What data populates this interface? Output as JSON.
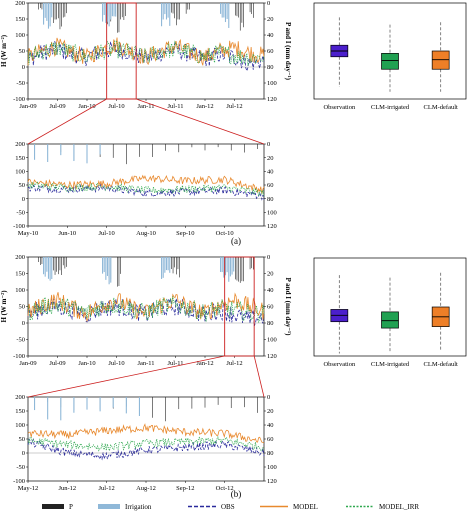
{
  "figure": {
    "panel_labels": [
      "(a)",
      "(b)"
    ],
    "colors": {
      "obs": "#2a2a9c",
      "model": "#e8892e",
      "model_irr": "#2fa84f",
      "precip": "#222222",
      "irrigation": "#8fb8d8",
      "box_obs": "#4b1fcc",
      "box_irr": "#21a152",
      "box_def": "#ee7f27",
      "zoom": "#cc1f1f"
    }
  },
  "legend": {
    "items": [
      {
        "key": "P",
        "label": "P",
        "symbol": "bar",
        "color": "#222222"
      },
      {
        "key": "irrigation",
        "label": "Irrigation",
        "symbol": "bar",
        "color": "#8fb8d8"
      },
      {
        "key": "obs",
        "label": "OBS",
        "symbol": "dash",
        "color": "#2a2a9c"
      },
      {
        "key": "model",
        "label": "MODEL",
        "symbol": "line",
        "color": "#e8892e"
      },
      {
        "key": "model_irr",
        "label": "MODEL_IRR",
        "symbol": "dot",
        "color": "#2fa84f"
      }
    ]
  },
  "chart_data": [
    {
      "id": "a_main",
      "type": "line",
      "panel": "(a)",
      "ylabel": "H (W m⁻²)",
      "y2label": "P and I (mm day⁻¹)",
      "ylim": [
        -100,
        200
      ],
      "yticks": [
        -100,
        -50,
        0,
        50,
        100,
        150,
        200
      ],
      "y2ticks": [
        0,
        20,
        40,
        60,
        80,
        100,
        120
      ],
      "x_tick_labels": [
        "Jan-09",
        "Jul-09",
        "Jan-10",
        "Jul-10",
        "Jan-11",
        "Jul-11",
        "Jan-12",
        "Jul-12"
      ],
      "x_start": "Jan-09",
      "x_end": "Jan-13",
      "zoom_range": [
        "May-10",
        "Nov-10"
      ],
      "series": [
        {
          "name": "OBS",
          "color": "#2a2a9c",
          "style": "dash",
          "x": [
            "Jan-09",
            "Apr-09",
            "Jul-09",
            "Oct-09",
            "Jan-10",
            "Apr-10",
            "Jul-10",
            "Oct-10",
            "Jan-11",
            "Apr-11",
            "Jul-11",
            "Oct-11",
            "Jan-12",
            "Apr-12",
            "Jul-12",
            "Oct-12",
            "Jan-13"
          ],
          "values": [
            25,
            45,
            55,
            40,
            30,
            50,
            55,
            45,
            25,
            45,
            55,
            40,
            25,
            40,
            30,
            10,
            20
          ]
        },
        {
          "name": "MODEL",
          "color": "#e8892e",
          "style": "solid",
          "x": [
            "Jan-09",
            "Apr-09",
            "Jul-09",
            "Oct-09",
            "Jan-10",
            "Apr-10",
            "Jul-10",
            "Oct-10",
            "Jan-11",
            "Apr-11",
            "Jul-11",
            "Oct-11",
            "Jan-12",
            "Apr-12",
            "Jul-12",
            "Oct-12",
            "Jan-13"
          ],
          "values": [
            30,
            50,
            65,
            45,
            30,
            55,
            70,
            50,
            30,
            50,
            65,
            45,
            30,
            50,
            60,
            45,
            35
          ]
        },
        {
          "name": "MODEL_IRR",
          "color": "#2fa84f",
          "style": "dot",
          "x": [
            "Jan-09",
            "Apr-09",
            "Jul-09",
            "Oct-09",
            "Jan-10",
            "Apr-10",
            "Jul-10",
            "Oct-10",
            "Jan-11",
            "Apr-11",
            "Jul-11",
            "Oct-11",
            "Jan-12",
            "Apr-12",
            "Jul-12",
            "Oct-12",
            "Jan-13"
          ],
          "values": [
            30,
            50,
            60,
            45,
            30,
            50,
            55,
            45,
            30,
            50,
            55,
            45,
            30,
            45,
            35,
            30,
            30
          ]
        }
      ],
      "bars": [
        {
          "name": "P",
          "color": "#222222",
          "x": [
            "Mar-09",
            "Jun-09",
            "Jul-09",
            "Aug-09",
            "May-10",
            "Jun-10",
            "Jul-10",
            "Aug-10",
            "Jun-11",
            "Jul-11",
            "Sep-11",
            "Jul-12",
            "Aug-12",
            "Oct-12"
          ],
          "values": [
            10,
            25,
            35,
            20,
            30,
            15,
            40,
            25,
            20,
            30,
            15,
            25,
            35,
            20
          ]
        },
        {
          "name": "Irrigation",
          "color": "#8fb8d8",
          "x": [
            "Apr-09",
            "May-09",
            "Apr-10",
            "May-10",
            "Jun-10",
            "Apr-11",
            "May-11",
            "Apr-12",
            "May-12"
          ],
          "values": [
            30,
            35,
            30,
            35,
            25,
            30,
            35,
            30,
            35
          ]
        }
      ]
    },
    {
      "id": "a_zoom",
      "type": "line",
      "panel": "(a)",
      "ylim": [
        -100,
        200
      ],
      "yticks": [
        -100,
        -50,
        0,
        50,
        100,
        150,
        200
      ],
      "y2ticks": [
        0,
        20,
        40,
        60,
        80,
        100,
        120
      ],
      "x_tick_labels": [
        "May-10",
        "Jun-10",
        "Jul-10",
        "Aug-10",
        "Sep-10",
        "Oct-10"
      ],
      "x_start": "May-10",
      "x_end": "Nov-10",
      "series": [
        {
          "name": "OBS",
          "color": "#2a2a9c",
          "style": "dash",
          "x": [
            "May-10",
            "Jun-10",
            "Jul-10",
            "Aug-10",
            "Sep-10",
            "Oct-10",
            "Nov-10"
          ],
          "values": [
            40,
            35,
            40,
            20,
            25,
            30,
            10
          ]
        },
        {
          "name": "MODEL",
          "color": "#e8892e",
          "style": "solid",
          "x": [
            "May-10",
            "Jun-10",
            "Jul-10",
            "Aug-10",
            "Sep-10",
            "Oct-10",
            "Nov-10"
          ],
          "values": [
            60,
            50,
            55,
            75,
            65,
            70,
            30
          ]
        },
        {
          "name": "MODEL_IRR",
          "color": "#2fa84f",
          "style": "dot",
          "x": [
            "May-10",
            "Jun-10",
            "Jul-10",
            "Aug-10",
            "Sep-10",
            "Oct-10",
            "Nov-10"
          ],
          "values": [
            50,
            40,
            45,
            30,
            35,
            40,
            20
          ]
        }
      ],
      "bars": [
        {
          "name": "P",
          "color": "#222222",
          "x": [
            "May-10",
            "Jun-10",
            "Jul-10",
            "Aug-10",
            "Sep-10",
            "Oct-10"
          ],
          "values": [
            15,
            25,
            40,
            20,
            10,
            15
          ]
        },
        {
          "name": "Irrigation",
          "color": "#8fb8d8",
          "x": [
            "May-10",
            "Jun-10"
          ],
          "values": [
            30,
            30
          ]
        }
      ]
    },
    {
      "id": "a_box",
      "type": "box",
      "panel": "(a)",
      "categories": [
        "Observation",
        "CLM-irrigated",
        "CLM-default"
      ],
      "colors": [
        "#4b1fcc",
        "#21a152",
        "#ee7f27"
      ],
      "stats": [
        {
          "min": 25,
          "q1": 88,
          "median": 100,
          "q3": 112,
          "max": 170
        },
        {
          "min": 15,
          "q1": 62,
          "median": 80,
          "q3": 95,
          "max": 155
        },
        {
          "min": 15,
          "q1": 62,
          "median": 82,
          "q3": 100,
          "max": 160
        }
      ]
    },
    {
      "id": "b_main",
      "type": "line",
      "panel": "(b)",
      "ylabel": "H (W m⁻²)",
      "y2label": "P and I (mm day⁻¹)",
      "ylim": [
        -100,
        200
      ],
      "yticks": [
        -100,
        -50,
        0,
        50,
        100,
        150,
        200
      ],
      "y2ticks": [
        0,
        20,
        40,
        60,
        80,
        100,
        120
      ],
      "x_tick_labels": [
        "Jan-09",
        "Jul-09",
        "Jan-10",
        "Jul-10",
        "Jan-11",
        "Jul-11",
        "Jan-12",
        "Jul-12"
      ],
      "x_start": "Jan-09",
      "x_end": "Jan-13",
      "zoom_range": [
        "May-12",
        "Nov-12"
      ],
      "series": [
        {
          "name": "OBS",
          "color": "#2a2a9c",
          "style": "dash",
          "x": [
            "Jan-09",
            "Apr-09",
            "Jul-09",
            "Oct-09",
            "Jan-10",
            "Apr-10",
            "Jul-10",
            "Oct-10",
            "Jan-11",
            "Apr-11",
            "Jul-11",
            "Oct-11",
            "Jan-12",
            "Apr-12",
            "Jul-12",
            "Oct-12",
            "Jan-13"
          ],
          "values": [
            25,
            45,
            50,
            40,
            25,
            45,
            50,
            40,
            25,
            45,
            50,
            40,
            25,
            40,
            25,
            10,
            20
          ]
        },
        {
          "name": "MODEL",
          "color": "#e8892e",
          "style": "solid",
          "x": [
            "Jan-09",
            "Apr-09",
            "Jul-09",
            "Oct-09",
            "Jan-10",
            "Apr-10",
            "Jul-10",
            "Oct-10",
            "Jan-11",
            "Apr-11",
            "Jul-11",
            "Oct-11",
            "Jan-12",
            "Apr-12",
            "Jul-12",
            "Oct-12",
            "Jan-13"
          ],
          "values": [
            30,
            55,
            70,
            45,
            30,
            55,
            70,
            45,
            30,
            55,
            70,
            45,
            30,
            55,
            70,
            50,
            35
          ]
        },
        {
          "name": "MODEL_IRR",
          "color": "#2fa84f",
          "style": "dot",
          "x": [
            "Jan-09",
            "Apr-09",
            "Jul-09",
            "Oct-09",
            "Jan-10",
            "Apr-10",
            "Jul-10",
            "Oct-10",
            "Jan-11",
            "Apr-11",
            "Jul-11",
            "Oct-11",
            "Jan-12",
            "Apr-12",
            "Jul-12",
            "Oct-12",
            "Jan-13"
          ],
          "values": [
            30,
            50,
            55,
            45,
            30,
            50,
            55,
            45,
            30,
            50,
            55,
            45,
            30,
            45,
            40,
            30,
            30
          ]
        }
      ],
      "bars": [
        {
          "name": "P",
          "color": "#222222",
          "x": [
            "Mar-09",
            "Jun-09",
            "Jul-09",
            "Aug-09",
            "May-10",
            "Jul-10",
            "Jun-11",
            "Jul-11",
            "Jun-12",
            "Jul-12",
            "Aug-12",
            "Oct-12"
          ],
          "values": [
            10,
            25,
            35,
            20,
            30,
            40,
            20,
            30,
            20,
            30,
            35,
            20
          ]
        },
        {
          "name": "Irrigation",
          "color": "#8fb8d8",
          "x": [
            "Apr-09",
            "May-09",
            "Apr-10",
            "May-10",
            "Apr-11",
            "May-11",
            "Apr-12",
            "May-12",
            "Jun-12"
          ],
          "values": [
            30,
            35,
            30,
            35,
            30,
            35,
            30,
            35,
            30
          ]
        }
      ]
    },
    {
      "id": "b_zoom",
      "type": "line",
      "panel": "(b)",
      "ylim": [
        -100,
        200
      ],
      "yticks": [
        -100,
        -50,
        0,
        50,
        100,
        150,
        200
      ],
      "y2ticks": [
        0,
        20,
        40,
        60,
        80,
        100,
        120
      ],
      "x_tick_labels": [
        "May-12",
        "Jun-12",
        "Jul-12",
        "Aug-12",
        "Sep-12",
        "Oct-12"
      ],
      "x_start": "May-12",
      "x_end": "Nov-12",
      "series": [
        {
          "name": "OBS",
          "color": "#2a2a9c",
          "style": "dash",
          "x": [
            "May-12",
            "Jun-12",
            "Jul-12",
            "Aug-12",
            "Sep-12",
            "Oct-12",
            "Nov-12"
          ],
          "values": [
            40,
            0,
            -10,
            10,
            20,
            30,
            0
          ]
        },
        {
          "name": "MODEL",
          "color": "#e8892e",
          "style": "solid",
          "x": [
            "May-12",
            "Jun-12",
            "Jul-12",
            "Aug-12",
            "Sep-12",
            "Oct-12",
            "Nov-12"
          ],
          "values": [
            70,
            65,
            80,
            90,
            75,
            70,
            40
          ]
        },
        {
          "name": "MODEL_IRR",
          "color": "#2fa84f",
          "style": "dot",
          "x": [
            "May-12",
            "Jun-12",
            "Jul-12",
            "Aug-12",
            "Sep-12",
            "Oct-12",
            "Nov-12"
          ],
          "values": [
            45,
            30,
            20,
            35,
            40,
            45,
            20
          ]
        }
      ],
      "bars": [
        {
          "name": "P",
          "color": "#222222",
          "x": [
            "May-12",
            "Jun-12",
            "Jul-12",
            "Aug-12",
            "Sep-12",
            "Oct-12"
          ],
          "values": [
            15,
            20,
            30,
            35,
            20,
            25
          ]
        },
        {
          "name": "Irrigation",
          "color": "#8fb8d8",
          "x": [
            "May-12",
            "Jun-12",
            "Jul-12"
          ],
          "values": [
            35,
            35,
            30
          ]
        }
      ]
    },
    {
      "id": "b_box",
      "type": "box",
      "panel": "(b)",
      "categories": [
        "Observation",
        "CLM-irrigated",
        "CLM-default"
      ],
      "colors": [
        "#4b1fcc",
        "#21a152",
        "#ee7f27"
      ],
      "stats": [
        {
          "min": 5,
          "q1": 70,
          "median": 83,
          "q3": 95,
          "max": 165
        },
        {
          "min": 10,
          "q1": 57,
          "median": 72,
          "q3": 90,
          "max": 160
        },
        {
          "min": 10,
          "q1": 60,
          "median": 80,
          "q3": 100,
          "max": 170
        }
      ]
    }
  ]
}
